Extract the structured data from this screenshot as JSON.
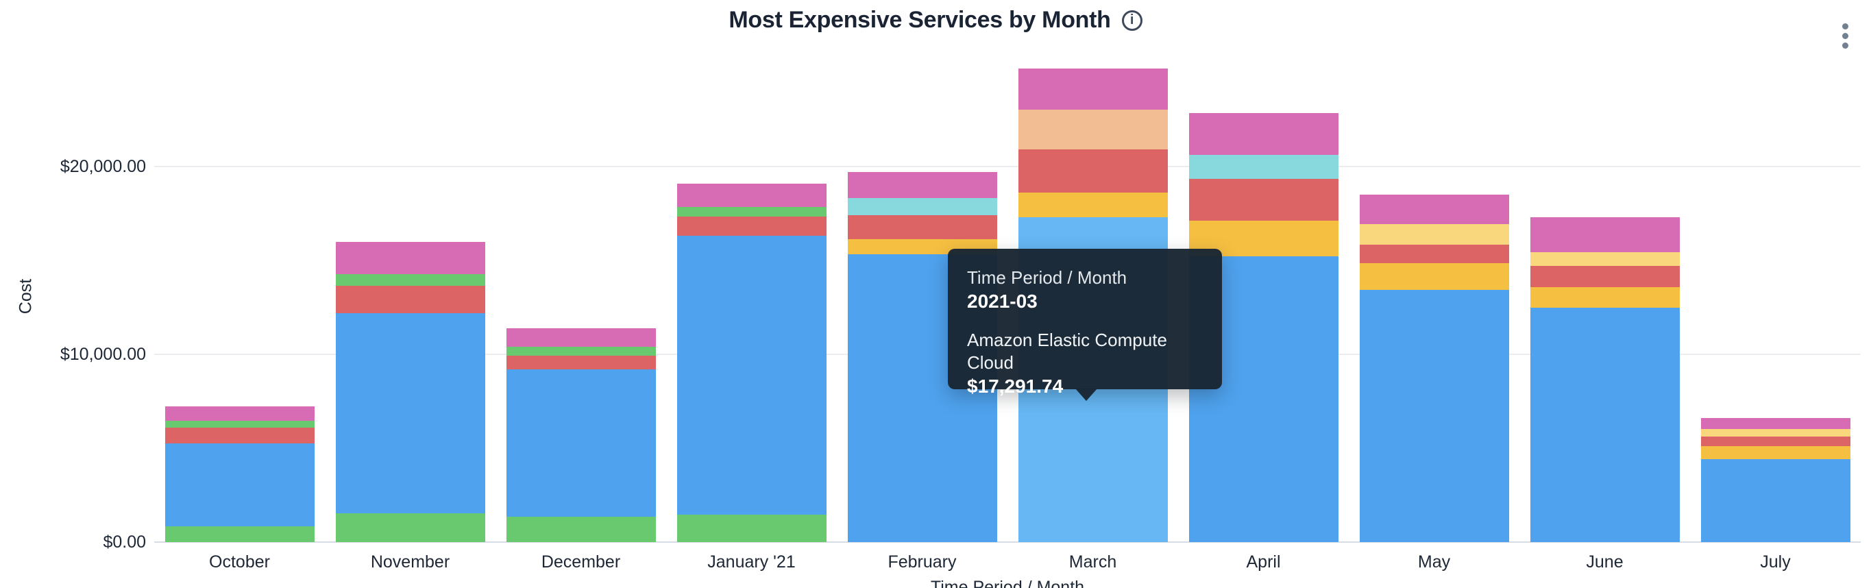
{
  "header": {
    "title": "Most Expensive Services by Month",
    "info_icon": "i"
  },
  "tooltip": {
    "label": "Time Period / Month",
    "period": "2021-03",
    "series_name": "Amazon Elastic Compute Cloud",
    "value": "$17,291.74"
  },
  "chart_data": {
    "type": "bar",
    "stacked": true,
    "title": "Most Expensive Services by Month",
    "xlabel": "Time Period / Month",
    "ylabel": "Cost",
    "legend": "none",
    "grid": "horizontal",
    "ylim": [
      0,
      25500
    ],
    "y_axis": {
      "ticks": [
        {
          "value": 0,
          "label": "$0.00"
        },
        {
          "value": 10000,
          "label": "$10,000.00"
        },
        {
          "value": 20000,
          "label": "$20,000.00"
        }
      ]
    },
    "categories": [
      "October",
      "November",
      "December",
      "January '21",
      "February",
      "March",
      "April",
      "May",
      "June",
      "July"
    ],
    "hovered": {
      "category": "March",
      "period": "2021-03",
      "series": "Amazon Elastic Compute Cloud",
      "value": 17291.74
    },
    "colors": {
      "blue": "#4FA2EE",
      "blue_highlight": "#66B7F4",
      "green": "#68C96E",
      "red": "#DD6464",
      "pink": "#D76BB4",
      "amber": "#F5BF42",
      "light_yellow": "#F8D77D",
      "cyan": "#87D9DE",
      "peach": "#F2BD93"
    },
    "bars": [
      {
        "month": "October",
        "total": 7220,
        "segments": [
          {
            "color": "green",
            "value": 840
          },
          {
            "color": "blue",
            "value": 4400
          },
          {
            "color": "red",
            "value": 870
          },
          {
            "color": "green",
            "value": 350
          },
          {
            "color": "pink",
            "value": 760
          }
        ]
      },
      {
        "month": "November",
        "total": 15990,
        "segments": [
          {
            "color": "green",
            "value": 1530
          },
          {
            "color": "blue",
            "value": 10660
          },
          {
            "color": "red",
            "value": 1460
          },
          {
            "color": "green",
            "value": 620
          },
          {
            "color": "pink",
            "value": 1720
          }
        ]
      },
      {
        "month": "December",
        "total": 11390,
        "segments": [
          {
            "color": "green",
            "value": 1350
          },
          {
            "color": "blue",
            "value": 7850
          },
          {
            "color": "red",
            "value": 730
          },
          {
            "color": "green",
            "value": 475
          },
          {
            "color": "pink",
            "value": 985
          }
        ]
      },
      {
        "month": "January '21",
        "total": 19090,
        "segments": [
          {
            "color": "green",
            "value": 1460
          },
          {
            "color": "blue",
            "value": 14860
          },
          {
            "color": "red",
            "value": 1020
          },
          {
            "color": "green",
            "value": 510
          },
          {
            "color": "pink",
            "value": 1240
          }
        ]
      },
      {
        "month": "February",
        "total": 19710,
        "segments": [
          {
            "color": "blue",
            "value": 15330
          },
          {
            "color": "amber",
            "value": 800
          },
          {
            "color": "red",
            "value": 1280
          },
          {
            "color": "cyan",
            "value": 910
          },
          {
            "color": "pink",
            "value": 1390
          }
        ]
      },
      {
        "month": "March",
        "total": 25211.74,
        "segments": [
          {
            "color": "blue_highlight",
            "value": 17291.74
          },
          {
            "color": "amber",
            "value": 1310
          },
          {
            "color": "red",
            "value": 2300
          },
          {
            "color": "peach",
            "value": 2120
          },
          {
            "color": "pink",
            "value": 2190
          }
        ]
      },
      {
        "month": "April",
        "total": 22860,
        "segments": [
          {
            "color": "blue",
            "value": 15220
          },
          {
            "color": "amber",
            "value": 1900
          },
          {
            "color": "red",
            "value": 2230
          },
          {
            "color": "cyan",
            "value": 1280
          },
          {
            "color": "pink",
            "value": 2230
          }
        ]
      },
      {
        "month": "May",
        "total": 18500,
        "segments": [
          {
            "color": "blue",
            "value": 13430
          },
          {
            "color": "amber",
            "value": 1420
          },
          {
            "color": "red",
            "value": 990
          },
          {
            "color": "light_yellow",
            "value": 1090
          },
          {
            "color": "pink",
            "value": 1570
          }
        ]
      },
      {
        "month": "June",
        "total": 17300,
        "segments": [
          {
            "color": "blue",
            "value": 12480
          },
          {
            "color": "amber",
            "value": 1100
          },
          {
            "color": "red",
            "value": 1130
          },
          {
            "color": "light_yellow",
            "value": 730
          },
          {
            "color": "pink",
            "value": 1860
          }
        ]
      },
      {
        "month": "July",
        "total": 6615,
        "segments": [
          {
            "color": "blue",
            "value": 4420
          },
          {
            "color": "amber",
            "value": 700
          },
          {
            "color": "red",
            "value": 510
          },
          {
            "color": "light_yellow",
            "value": 400
          },
          {
            "color": "pink",
            "value": 585
          }
        ]
      }
    ]
  },
  "ui_colors": {
    "text_dark": "#1d2736",
    "grid": "#ebedf1",
    "axis_line": "#d8dce4",
    "tooltip_bg": "#1a2633",
    "menu_dots": "#73808f"
  }
}
